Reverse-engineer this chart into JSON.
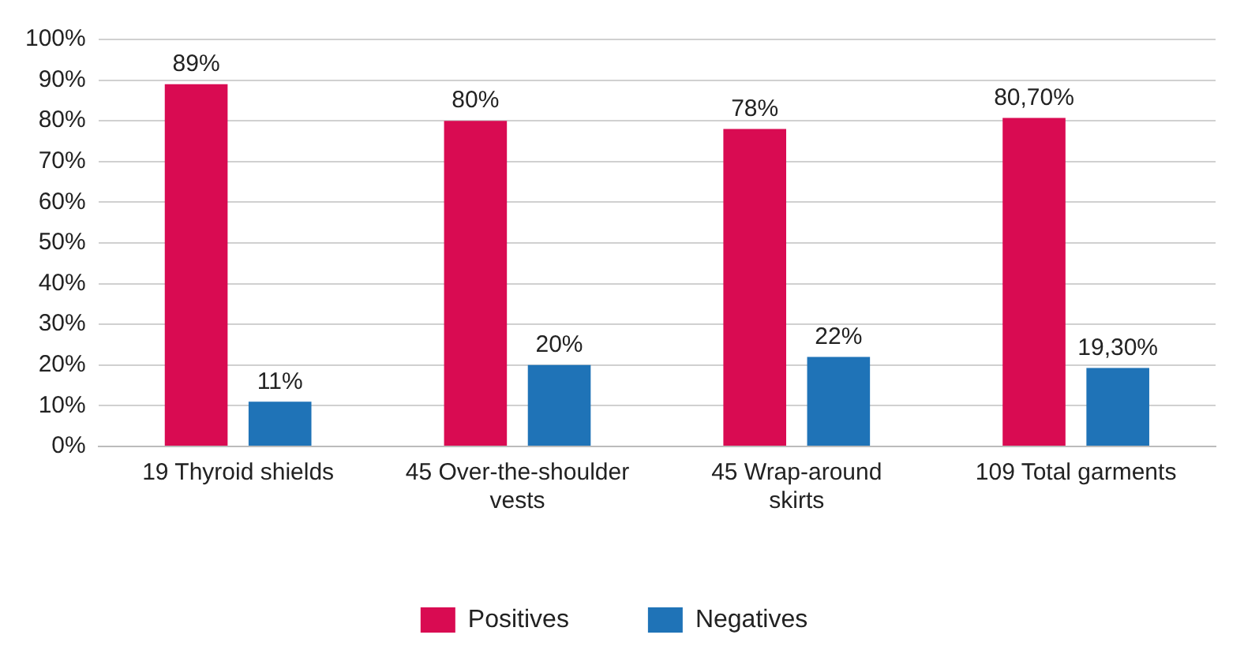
{
  "chart_data": {
    "type": "bar",
    "categories": [
      "19 Thyroid shields",
      "45 Over-the-shoulder vests",
      "45 Wrap-around skirts",
      "109 Total garments"
    ],
    "series": [
      {
        "name": "Positives",
        "color": "#d90b52",
        "values": [
          89,
          80,
          78,
          80.7
        ],
        "value_labels": [
          "89%",
          "80%",
          "78%",
          "80,70%"
        ]
      },
      {
        "name": "Negatives",
        "color": "#1f73b7",
        "values": [
          11,
          20,
          22,
          19.3
        ],
        "value_labels": [
          "11%",
          "20%",
          "22%",
          "19,30%"
        ]
      }
    ],
    "ylim": [
      0,
      100
    ],
    "yticks": [
      {
        "value": 0,
        "label": "0%"
      },
      {
        "value": 10,
        "label": "10%"
      },
      {
        "value": 20,
        "label": "20%"
      },
      {
        "value": 30,
        "label": "30%"
      },
      {
        "value": 40,
        "label": "40%"
      },
      {
        "value": 50,
        "label": "50%"
      },
      {
        "value": 60,
        "label": "60%"
      },
      {
        "value": 70,
        "label": "70%"
      },
      {
        "value": 80,
        "label": "80%"
      },
      {
        "value": 90,
        "label": "90%"
      },
      {
        "value": 100,
        "label": "100%"
      }
    ],
    "grid": "y",
    "legend": "bottom"
  }
}
